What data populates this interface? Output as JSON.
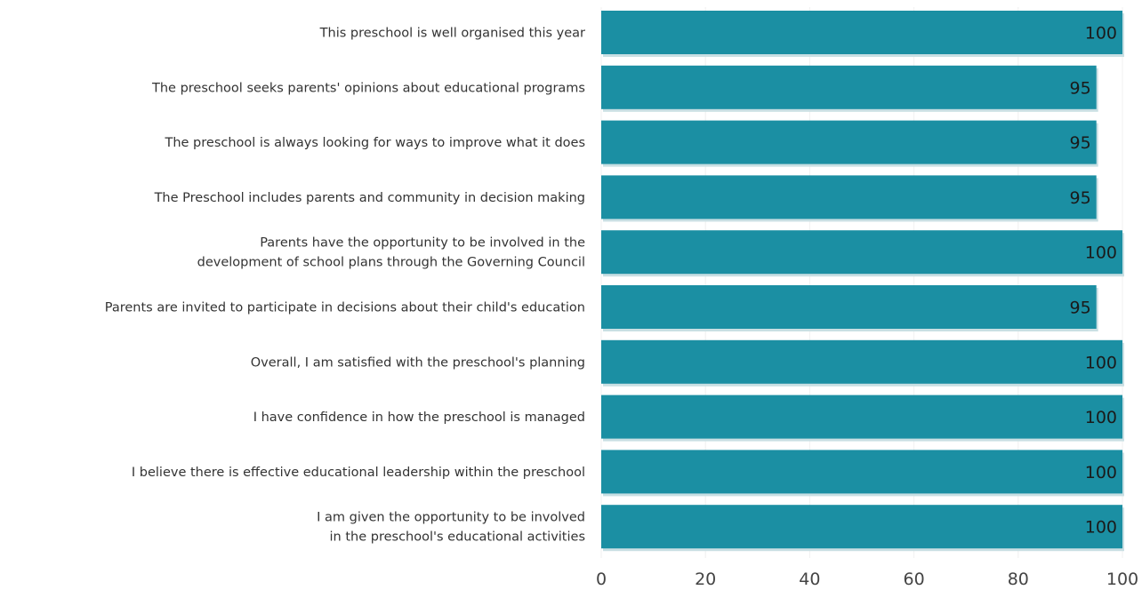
{
  "chart_data": {
    "type": "bar",
    "orientation": "horizontal",
    "categories": [
      [
        "This preschool is well organised this year"
      ],
      [
        "The preschool seeks parents' opinions about educational programs"
      ],
      [
        "The preschool is always looking for ways to improve what it does"
      ],
      [
        "The Preschool includes parents and community in decision making"
      ],
      [
        "Parents have the opportunity to be involved in the",
        "development of school plans through the Governing Council"
      ],
      [
        "Parents are invited to participate in decisions about their child's education"
      ],
      [
        "Overall, I am satisfied with the preschool's planning"
      ],
      [
        "I have confidence in how the preschool is managed"
      ],
      [
        "I believe there is effective educational leadership within the preschool"
      ],
      [
        "I am given the opportunity to be involved",
        "in the preschool's educational activities"
      ]
    ],
    "values": [
      100,
      95,
      95,
      95,
      100,
      95,
      100,
      100,
      100,
      100
    ],
    "value_labels": [
      "100",
      "95",
      "95",
      "95",
      "100",
      "95",
      "100",
      "100",
      "100",
      "100"
    ],
    "xlim": [
      0,
      100
    ],
    "x_ticks": [
      0,
      20,
      40,
      60,
      80,
      100
    ],
    "x_tick_labels": [
      "0",
      "20",
      "40",
      "60",
      "80",
      "100"
    ],
    "title": "",
    "xlabel": "",
    "ylabel": "",
    "grid": true,
    "legend": "none",
    "colors": {
      "bar": "#1b8fa3",
      "bar_shadow": "#c9dfe3",
      "grid": "#f0f0f0"
    }
  }
}
